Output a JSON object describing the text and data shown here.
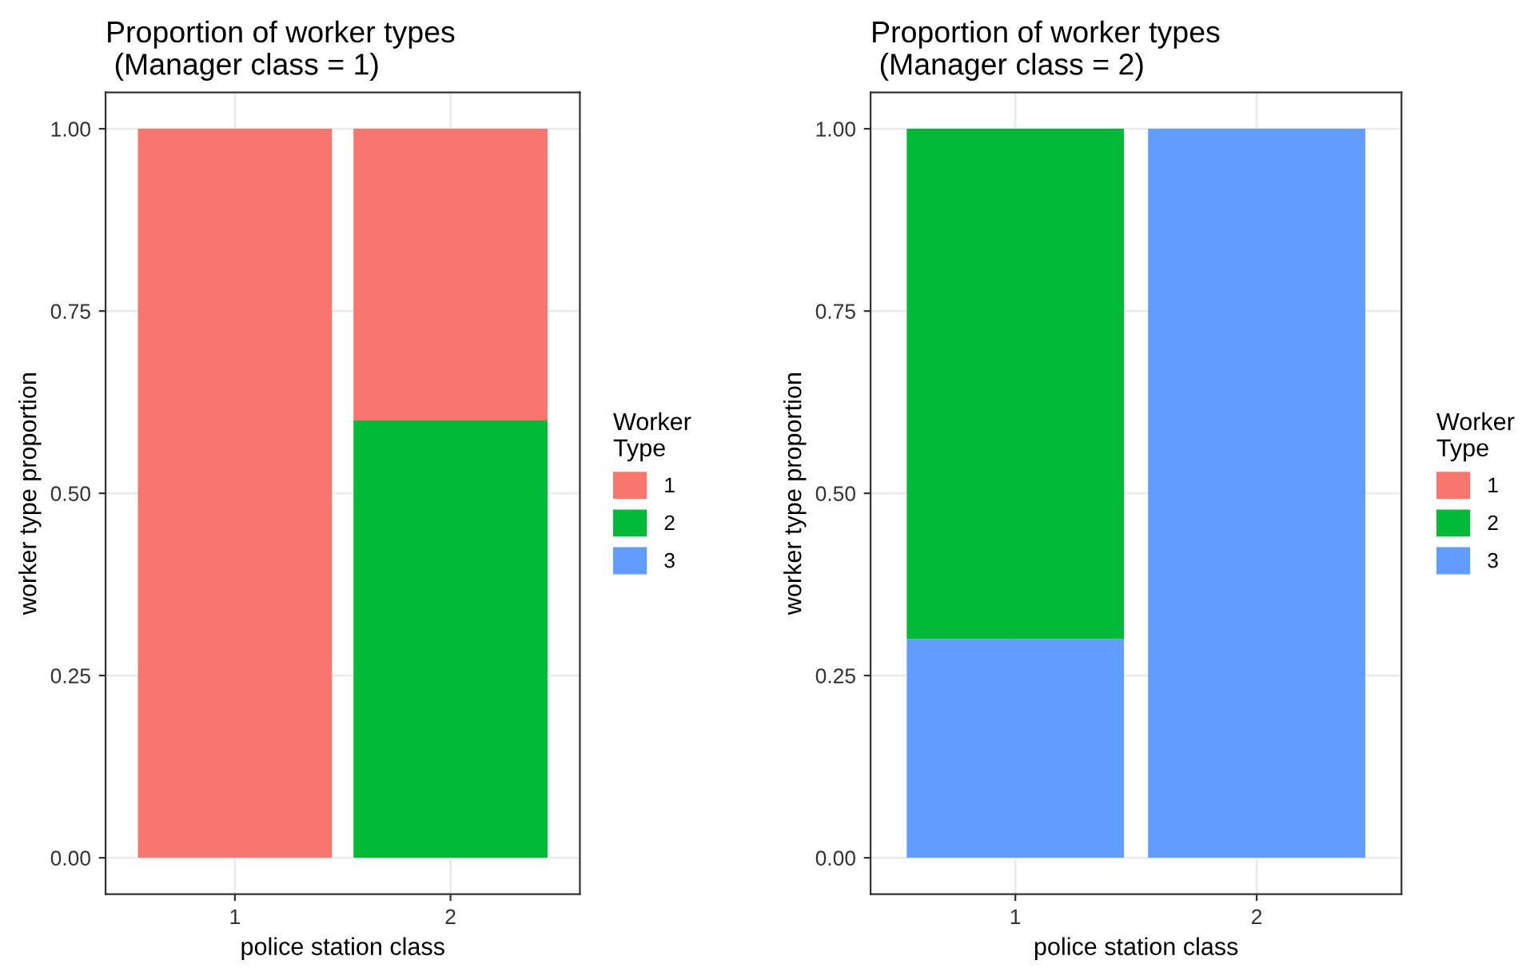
{
  "chart_data": [
    {
      "type": "bar",
      "title": "Proportion of worker types\n (Manager class = 1)",
      "xlabel": "police station class",
      "ylabel": "worker type proportion",
      "legend_title": "Worker\nType",
      "categories": [
        "1",
        "2"
      ],
      "stacked": true,
      "legend": "right",
      "grid": true,
      "ylim": [
        -0.05,
        1.05
      ],
      "yticks": [
        {
          "value": 0,
          "label": "0.00"
        },
        {
          "value": 0.25,
          "label": "0.25"
        },
        {
          "value": 0.5,
          "label": "0.50"
        },
        {
          "value": 0.75,
          "label": "0.75"
        },
        {
          "value": 1,
          "label": "1.00"
        }
      ],
      "series": [
        {
          "name": "3",
          "color": "#619cff",
          "values": [
            0,
            0
          ]
        },
        {
          "name": "2",
          "color": "#00ba38",
          "values": [
            0,
            0.6
          ]
        },
        {
          "name": "1",
          "color": "#f8766d",
          "values": [
            1,
            0.4
          ]
        }
      ]
    },
    {
      "type": "bar",
      "title": "Proportion of worker types\n (Manager class = 2)",
      "xlabel": "police station class",
      "ylabel": "worker type proportion",
      "legend_title": "Worker\nType",
      "categories": [
        "1",
        "2"
      ],
      "stacked": true,
      "legend": "right",
      "grid": true,
      "ylim": [
        -0.05,
        1.05
      ],
      "yticks": [
        {
          "value": 0,
          "label": "0.00"
        },
        {
          "value": 0.25,
          "label": "0.25"
        },
        {
          "value": 0.5,
          "label": "0.50"
        },
        {
          "value": 0.75,
          "label": "0.75"
        },
        {
          "value": 1,
          "label": "1.00"
        }
      ],
      "series": [
        {
          "name": "3",
          "color": "#619cff",
          "values": [
            0.3,
            1
          ]
        },
        {
          "name": "2",
          "color": "#00ba38",
          "values": [
            0.7,
            0
          ]
        },
        {
          "name": "1",
          "color": "#f8766d",
          "values": [
            0,
            0
          ]
        }
      ]
    }
  ]
}
